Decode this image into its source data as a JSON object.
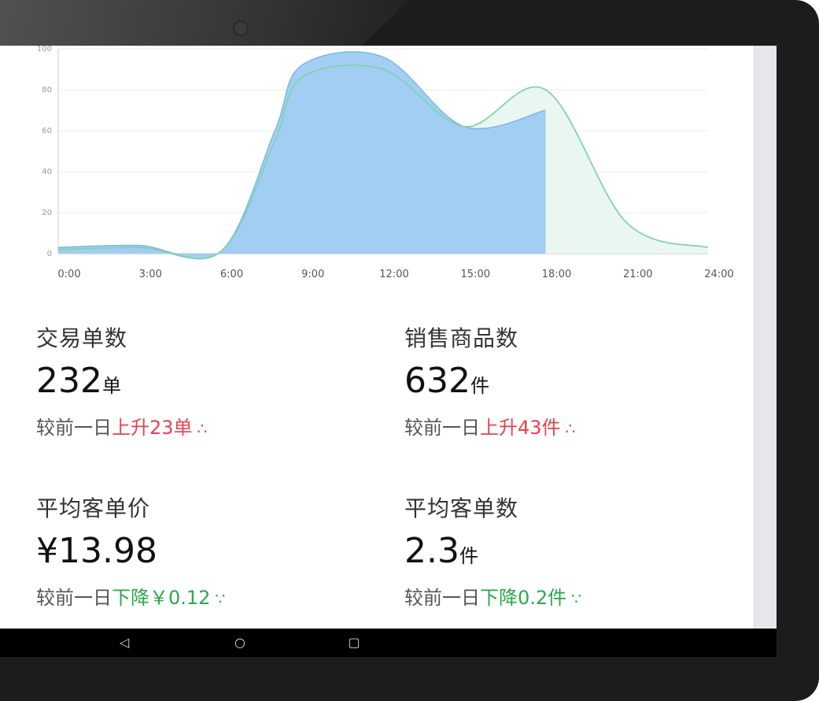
{
  "chart_data": {
    "type": "area",
    "x_labels": [
      "0:00",
      "3:00",
      "6:00",
      "9:00",
      "12:00",
      "15:00",
      "18:00",
      "21:00",
      "24:00"
    ],
    "y_ticks": [
      "0",
      "20",
      "40",
      "60",
      "80",
      "100"
    ],
    "ylim": [
      0,
      100
    ],
    "xlim": [
      0,
      24
    ],
    "series": [
      {
        "color": "#9fcbf2",
        "fill": true,
        "values": [
          [
            0,
            3
          ],
          [
            3,
            4
          ],
          [
            6,
            1
          ],
          [
            8,
            60
          ],
          [
            9,
            92
          ],
          [
            12,
            96
          ],
          [
            15,
            62
          ],
          [
            18,
            70
          ]
        ]
      },
      {
        "color": "#7fd3b0",
        "fill_color": "#eaf7f1",
        "values": [
          [
            0,
            2
          ],
          [
            3,
            3
          ],
          [
            6,
            1
          ],
          [
            8,
            55
          ],
          [
            9,
            86
          ],
          [
            12,
            90
          ],
          [
            15,
            62
          ],
          [
            18,
            80
          ],
          [
            21,
            15
          ],
          [
            24,
            3
          ]
        ]
      }
    ]
  },
  "stats": {
    "orders": {
      "label": "交易单数",
      "value": "232",
      "unit": "单",
      "prefix": "较前一日",
      "delta": "上升23单",
      "direction": "up"
    },
    "items": {
      "label": "销售商品数",
      "value": "632",
      "unit": "件",
      "prefix": "较前一日",
      "delta": "上升43件",
      "direction": "up"
    },
    "avg_price": {
      "label": "平均客单价",
      "value": "¥13.98",
      "unit": "",
      "prefix": "较前一日",
      "delta": "下降￥0.12",
      "direction": "down"
    },
    "avg_count": {
      "label": "平均客单数",
      "value": "2.3",
      "unit": "件",
      "prefix": "较前一日",
      "delta": "下降0.2件",
      "direction": "down"
    }
  },
  "nav": {
    "back_icon": "back-triangle-icon",
    "home_icon": "home-circle-icon",
    "recents_icon": "recents-square-icon"
  }
}
